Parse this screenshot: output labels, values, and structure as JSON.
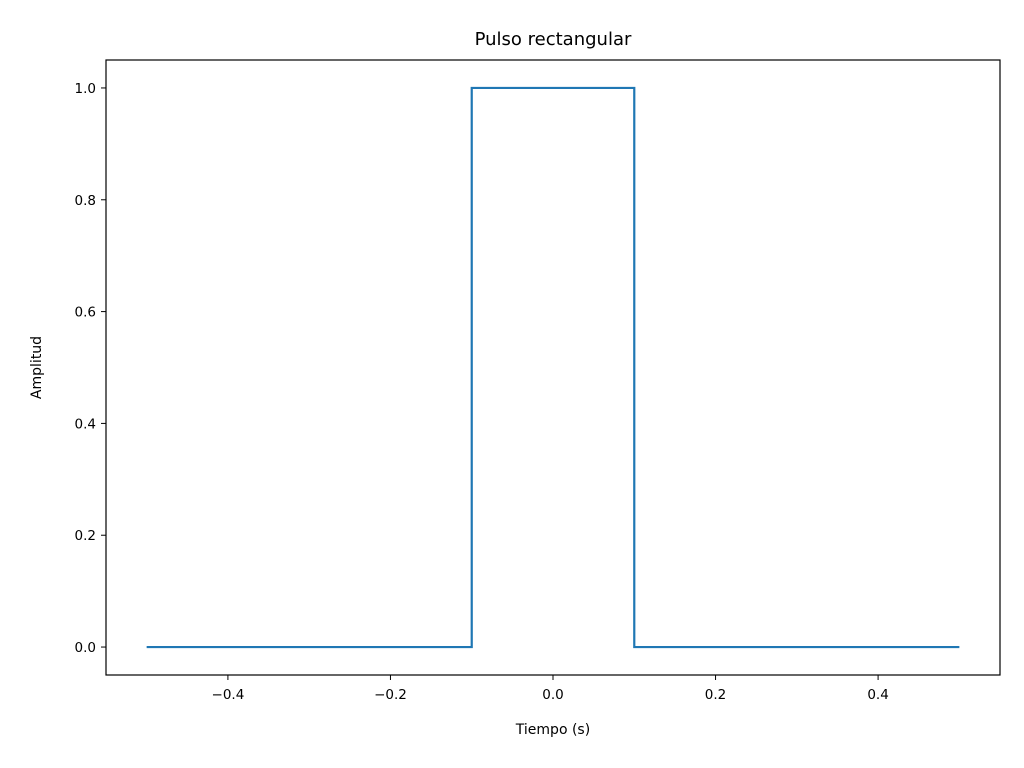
{
  "chart_data": {
    "type": "line",
    "title": "Pulso rectangular",
    "xlabel": "Tiempo (s)",
    "ylabel": "Amplitud",
    "xlim": [
      -0.55,
      0.55
    ],
    "ylim": [
      -0.05,
      1.05
    ],
    "x_ticks": [
      -0.4,
      -0.2,
      0.0,
      0.2,
      0.4
    ],
    "x_tick_labels": [
      "−0.4",
      "−0.2",
      "0.0",
      "0.2",
      "0.4"
    ],
    "y_ticks": [
      0.0,
      0.2,
      0.4,
      0.6,
      0.8,
      1.0
    ],
    "y_tick_labels": [
      "0.0",
      "0.2",
      "0.4",
      "0.6",
      "0.8",
      "1.0"
    ],
    "grid": false,
    "series": [
      {
        "color": "#1f77b4",
        "x": [
          -0.5,
          -0.1,
          -0.1,
          0.1,
          0.1,
          0.5
        ],
        "y": [
          0,
          0,
          1,
          1,
          0,
          0
        ]
      }
    ]
  }
}
